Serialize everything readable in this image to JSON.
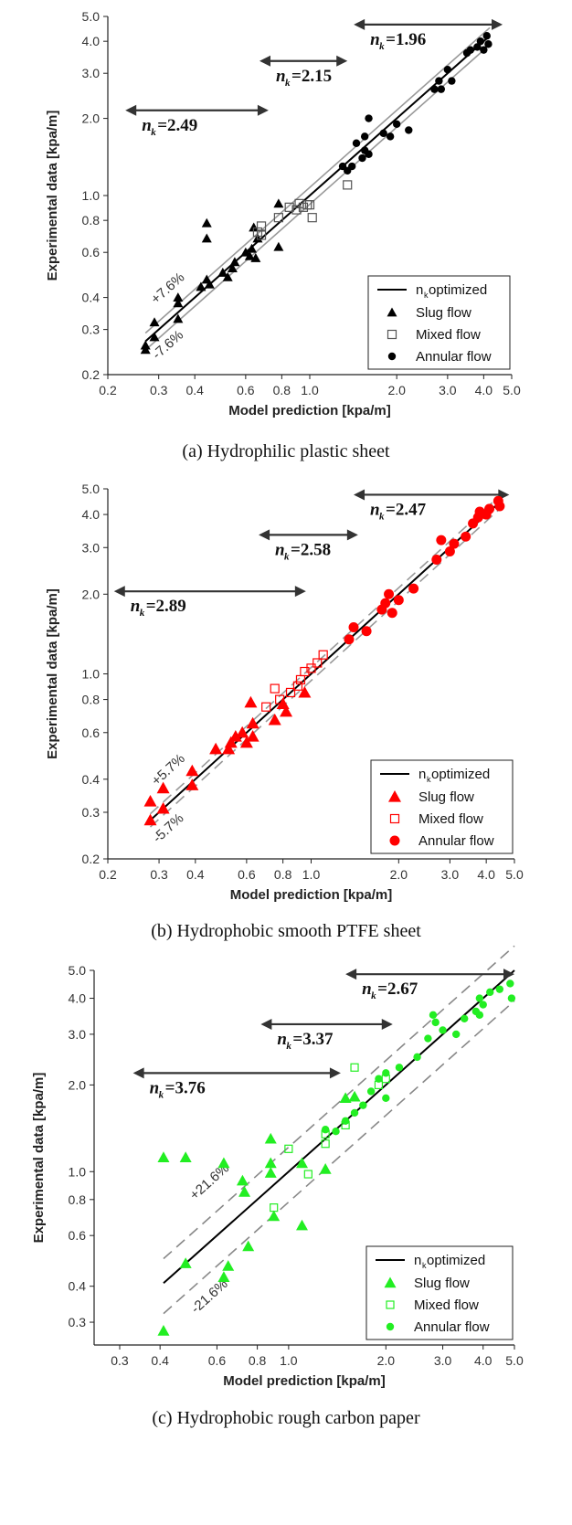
{
  "chart_data": [
    {
      "type": "scatter",
      "caption": "(a) Hydrophilic plastic sheet",
      "xlabel": "Model prediction [kpa/m]",
      "ylabel": "Experimental data [kpa/m]",
      "xscale": "log",
      "yscale": "log",
      "xlim": [
        0.2,
        5.0
      ],
      "ylim": [
        0.2,
        5.0
      ],
      "xticks": [
        "0.2",
        "0.3",
        "0.4",
        "0.6",
        "0.8",
        "1.0",
        "2.0",
        "3.0",
        "4.0",
        "5.0"
      ],
      "yticks": [
        "0.2",
        "0.3",
        "0.4",
        "0.6",
        "0.8",
        "1.0",
        "2.0",
        "3.0",
        "4.0",
        "5.0"
      ],
      "colors": {
        "slug": "#000000",
        "mixed": "#555555",
        "annular": "#000000",
        "fit": "#000000",
        "band": "#999999"
      },
      "bands": [
        {
          "label": "+7.6%",
          "factor": 1.076
        },
        {
          "label": "-7.6%",
          "factor": 0.924
        }
      ],
      "fit_range": [
        0.27,
        4.2
      ],
      "nk_labels": [
        {
          "value": "=2.49",
          "range": [
            0.23,
            0.72
          ],
          "y": 2.15
        },
        {
          "value": "=2.15",
          "range": [
            0.67,
            1.35
          ],
          "y": 3.35
        },
        {
          "value": "=1.96",
          "range": [
            1.42,
            4.65
          ],
          "y": 4.65
        }
      ],
      "legend": {
        "position": "bottom-right",
        "fit": "n",
        "fit_sub": "k",
        "fit_suffix": " optimized",
        "slug": "Slug flow",
        "mixed": "Mixed flow",
        "annular": "Annular flow"
      },
      "series": [
        {
          "name": "Slug flow",
          "marker": "triangle-filled",
          "points": [
            [
              0.27,
              0.26
            ],
            [
              0.27,
              0.25
            ],
            [
              0.29,
              0.28
            ],
            [
              0.29,
              0.32
            ],
            [
              0.35,
              0.4
            ],
            [
              0.35,
              0.38
            ],
            [
              0.35,
              0.33
            ],
            [
              0.42,
              0.44
            ],
            [
              0.44,
              0.47
            ],
            [
              0.45,
              0.45
            ],
            [
              0.44,
              0.78
            ],
            [
              0.44,
              0.68
            ],
            [
              0.5,
              0.5
            ],
            [
              0.52,
              0.48
            ],
            [
              0.54,
              0.52
            ],
            [
              0.55,
              0.55
            ],
            [
              0.6,
              0.6
            ],
            [
              0.62,
              0.58
            ],
            [
              0.63,
              0.62
            ],
            [
              0.64,
              0.75
            ],
            [
              0.65,
              0.57
            ],
            [
              0.78,
              0.93
            ],
            [
              0.78,
              0.63
            ],
            [
              0.66,
              0.68
            ]
          ]
        },
        {
          "name": "Mixed flow",
          "marker": "square-open",
          "points": [
            [
              0.66,
              0.72
            ],
            [
              0.68,
              0.76
            ],
            [
              0.68,
              0.7
            ],
            [
              0.78,
              0.82
            ],
            [
              0.85,
              0.9
            ],
            [
              0.9,
              0.88
            ],
            [
              0.92,
              0.93
            ],
            [
              0.95,
              0.9
            ],
            [
              0.98,
              0.92
            ],
            [
              1.0,
              0.92
            ],
            [
              1.02,
              0.82
            ],
            [
              1.35,
              1.1
            ]
          ]
        },
        {
          "name": "Annular flow",
          "marker": "circle-filled",
          "points": [
            [
              1.3,
              1.3
            ],
            [
              1.35,
              1.25
            ],
            [
              1.4,
              1.3
            ],
            [
              1.45,
              1.6
            ],
            [
              1.52,
              1.4
            ],
            [
              1.55,
              1.5
            ],
            [
              1.55,
              1.7
            ],
            [
              1.6,
              2.0
            ],
            [
              1.6,
              1.45
            ],
            [
              1.8,
              1.75
            ],
            [
              1.9,
              1.7
            ],
            [
              2.0,
              1.9
            ],
            [
              2.2,
              1.8
            ],
            [
              2.7,
              2.6
            ],
            [
              2.8,
              2.8
            ],
            [
              2.85,
              2.6
            ],
            [
              3.0,
              3.1
            ],
            [
              3.1,
              2.8
            ],
            [
              3.5,
              3.6
            ],
            [
              3.6,
              3.7
            ],
            [
              3.8,
              3.8
            ],
            [
              3.9,
              4.0
            ],
            [
              4.0,
              3.7
            ],
            [
              4.1,
              4.2
            ],
            [
              4.15,
              3.9
            ]
          ]
        }
      ]
    },
    {
      "type": "scatter",
      "caption": "(b) Hydrophobic smooth PTFE sheet",
      "xlabel": "Model prediction [kpa/m]",
      "ylabel": "Experimental data [kpa/m]",
      "xscale": "log",
      "yscale": "log",
      "xlim": [
        0.2,
        5.0
      ],
      "ylim": [
        0.2,
        5.0
      ],
      "xticks": [
        "0.2",
        "0.3",
        "0.4",
        "0.6",
        "0.8",
        "1.0",
        "2.0",
        "3.0",
        "4.0",
        "5.0"
      ],
      "yticks": [
        "0.2",
        "0.3",
        "0.4",
        "0.6",
        "0.8",
        "1.0",
        "2.0",
        "3.0",
        "4.0",
        "5.0"
      ],
      "colors": {
        "slug": "#ff0000",
        "mixed": "#ff0000",
        "annular": "#ff0000",
        "fit": "#000000",
        "band": "#999999"
      },
      "bands": [
        {
          "label": "+5.7%",
          "factor": 1.057
        },
        {
          "label": "-5.7%",
          "factor": 0.943
        }
      ],
      "fit_range": [
        0.28,
        4.5
      ],
      "nk_labels": [
        {
          "value": "=2.89",
          "range": [
            0.21,
            0.96
          ],
          "y": 2.05
        },
        {
          "value": "=2.58",
          "range": [
            0.66,
            1.45
          ],
          "y": 3.35
        },
        {
          "value": "=2.47",
          "range": [
            1.4,
            4.8
          ],
          "y": 4.75
        }
      ],
      "legend": {
        "position": "bottom-right",
        "fit": "n",
        "fit_sub": "k",
        "fit_suffix": " optimized",
        "slug": "Slug flow",
        "mixed": "Mixed flow",
        "annular": "Annular flow"
      },
      "series": [
        {
          "name": "Slug flow",
          "marker": "triangle-filled",
          "points": [
            [
              0.28,
              0.33
            ],
            [
              0.28,
              0.28
            ],
            [
              0.31,
              0.37
            ],
            [
              0.31,
              0.31
            ],
            [
              0.39,
              0.43
            ],
            [
              0.39,
              0.38
            ],
            [
              0.47,
              0.52
            ],
            [
              0.52,
              0.52
            ],
            [
              0.53,
              0.55
            ],
            [
              0.55,
              0.58
            ],
            [
              0.58,
              0.6
            ],
            [
              0.6,
              0.55
            ],
            [
              0.62,
              0.78
            ],
            [
              0.63,
              0.65
            ],
            [
              0.63,
              0.58
            ],
            [
              0.75,
              0.67
            ],
            [
              0.8,
              0.77
            ],
            [
              0.82,
              0.72
            ],
            [
              0.95,
              0.85
            ]
          ]
        },
        {
          "name": "Mixed flow",
          "marker": "square-open",
          "points": [
            [
              0.7,
              0.75
            ],
            [
              0.75,
              0.88
            ],
            [
              0.78,
              0.8
            ],
            [
              0.85,
              0.85
            ],
            [
              0.9,
              0.9
            ],
            [
              0.92,
              0.95
            ],
            [
              0.95,
              1.02
            ],
            [
              1.0,
              1.05
            ],
            [
              1.05,
              1.1
            ],
            [
              1.1,
              1.18
            ]
          ]
        },
        {
          "name": "Annular flow",
          "marker": "circle-filled",
          "points": [
            [
              1.35,
              1.35
            ],
            [
              1.4,
              1.5
            ],
            [
              1.55,
              1.45
            ],
            [
              1.75,
              1.75
            ],
            [
              1.8,
              1.85
            ],
            [
              1.85,
              2.0
            ],
            [
              1.9,
              1.7
            ],
            [
              2.0,
              1.9
            ],
            [
              2.25,
              2.1
            ],
            [
              2.7,
              2.7
            ],
            [
              2.8,
              3.2
            ],
            [
              3.0,
              2.9
            ],
            [
              3.1,
              3.1
            ],
            [
              3.4,
              3.3
            ],
            [
              3.6,
              3.7
            ],
            [
              3.75,
              3.9
            ],
            [
              3.8,
              4.1
            ],
            [
              4.0,
              4.0
            ],
            [
              4.1,
              4.2
            ],
            [
              4.4,
              4.5
            ],
            [
              4.45,
              4.3
            ]
          ]
        }
      ]
    },
    {
      "type": "scatter",
      "caption": "(c) Hydrophobic rough carbon paper",
      "xlabel": "Model prediction [kpa/m]",
      "ylabel": "Experimental data [kpa/m]",
      "xscale": "log",
      "yscale": "log",
      "xlim": [
        0.25,
        5.0
      ],
      "ylim": [
        0.25,
        5.0
      ],
      "xticks": [
        "0.3",
        "0.4",
        "0.6",
        "0.8",
        "1.0",
        "2.0",
        "3.0",
        "4.0",
        "5.0"
      ],
      "yticks": [
        "0.3",
        "0.4",
        "0.6",
        "0.8",
        "1.0",
        "2.0",
        "3.0",
        "4.0",
        "5.0"
      ],
      "colors": {
        "slug": "#22ee22",
        "mixed": "#22ee22",
        "annular": "#22ee22",
        "fit": "#000000",
        "band": "#888888"
      },
      "bands": [
        {
          "label": "+21.6%",
          "factor": 1.216
        },
        {
          "label": "-21.6%",
          "factor": 0.784
        }
      ],
      "fit_range": [
        0.41,
        5.0
      ],
      "nk_labels": [
        {
          "value": "=3.76",
          "range": [
            0.33,
            1.45
          ],
          "y": 2.2
        },
        {
          "value": "=3.37",
          "range": [
            0.82,
            2.1
          ],
          "y": 3.25
        },
        {
          "value": "=2.67",
          "range": [
            1.5,
            5.0
          ],
          "y": 4.85
        }
      ],
      "legend": {
        "position": "bottom-right",
        "fit": "n",
        "fit_sub": "k",
        "fit_suffix": " optimized",
        "slug": "Slug flow",
        "mixed": "Mixed flow",
        "annular": "Annular flow"
      },
      "series": [
        {
          "name": "Slug flow",
          "marker": "triangle-filled",
          "points": [
            [
              0.41,
              1.12
            ],
            [
              0.41,
              0.28
            ],
            [
              0.48,
              1.12
            ],
            [
              0.48,
              0.48
            ],
            [
              0.63,
              1.07
            ],
            [
              0.63,
              0.43
            ],
            [
              0.65,
              0.47
            ],
            [
              0.72,
              0.93
            ],
            [
              0.73,
              0.85
            ],
            [
              0.75,
              0.55
            ],
            [
              0.88,
              0.99
            ],
            [
              0.88,
              1.07
            ],
            [
              0.88,
              1.3
            ],
            [
              0.9,
              0.7
            ],
            [
              1.1,
              1.07
            ],
            [
              1.1,
              0.65
            ],
            [
              1.3,
              1.02
            ],
            [
              1.5,
              1.8
            ],
            [
              1.6,
              1.82
            ]
          ]
        },
        {
          "name": "Mixed flow",
          "marker": "square-open",
          "points": [
            [
              0.9,
              0.75
            ],
            [
              1.0,
              1.2
            ],
            [
              1.15,
              0.98
            ],
            [
              1.3,
              1.25
            ],
            [
              1.3,
              1.35
            ],
            [
              1.5,
              1.45
            ],
            [
              1.6,
              2.3
            ],
            [
              1.9,
              2.0
            ],
            [
              2.0,
              2.1
            ]
          ]
        },
        {
          "name": "Annular flow",
          "marker": "circle-filled",
          "points": [
            [
              1.3,
              1.4
            ],
            [
              1.4,
              1.38
            ],
            [
              1.5,
              1.5
            ],
            [
              1.6,
              1.6
            ],
            [
              1.7,
              1.7
            ],
            [
              1.8,
              1.9
            ],
            [
              1.9,
              2.1
            ],
            [
              2.0,
              2.2
            ],
            [
              2.0,
              1.8
            ],
            [
              2.2,
              2.3
            ],
            [
              2.5,
              2.5
            ],
            [
              2.7,
              2.9
            ],
            [
              2.8,
              3.5
            ],
            [
              2.85,
              3.3
            ],
            [
              3.0,
              3.1
            ],
            [
              3.3,
              3.0
            ],
            [
              3.5,
              3.4
            ],
            [
              3.8,
              3.6
            ],
            [
              3.9,
              4.0
            ],
            [
              4.2,
              4.2
            ],
            [
              4.5,
              4.3
            ],
            [
              4.85,
              4.5
            ],
            [
              4.9,
              4.0
            ],
            [
              4.0,
              3.8
            ],
            [
              3.9,
              3.5
            ]
          ]
        }
      ]
    }
  ]
}
